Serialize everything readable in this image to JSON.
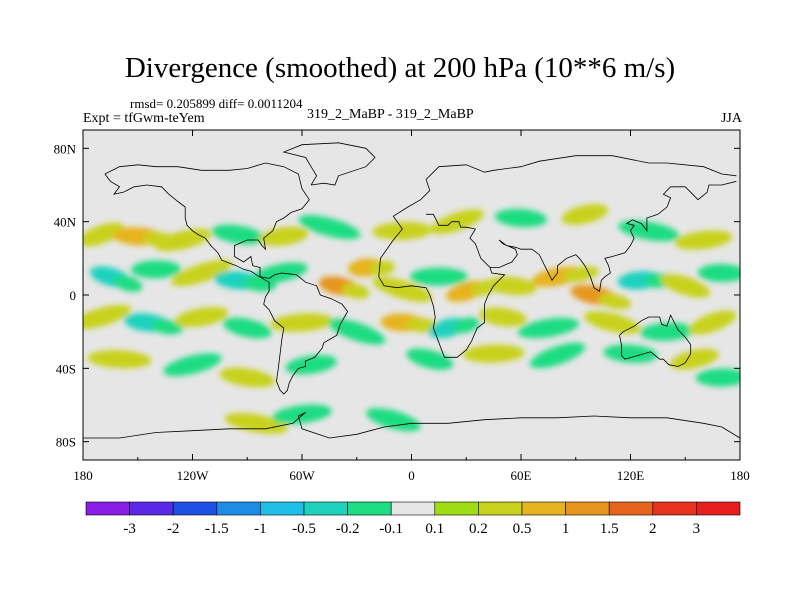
{
  "chart_data": {
    "type": "heatmap",
    "title": "Divergence (smoothed) at 200 hPa (10**6 m/s)",
    "stats_label": "rmsd= 0.205899 diff= 0.0011204",
    "left_label": "Expt = tfGwm-teYem",
    "center_label": "319_2_MaBP - 319_2_MaBP",
    "right_label": "JJA",
    "x_range": [
      -180,
      180
    ],
    "y_range": [
      -90,
      90
    ],
    "x_ticks": [
      {
        "value": -180,
        "label": "180"
      },
      {
        "value": -120,
        "label": "120W"
      },
      {
        "value": -60,
        "label": "60W"
      },
      {
        "value": 0,
        "label": "0"
      },
      {
        "value": 60,
        "label": "60E"
      },
      {
        "value": 120,
        "label": "120E"
      },
      {
        "value": 180,
        "label": "180"
      }
    ],
    "y_ticks": [
      {
        "value": 80,
        "label": "80N"
      },
      {
        "value": 40,
        "label": "40N"
      },
      {
        "value": 0,
        "label": "0"
      },
      {
        "value": -40,
        "label": "40S"
      },
      {
        "value": -80,
        "label": "80S"
      }
    ],
    "colorbar": {
      "colors": [
        "#8a1ee6",
        "#5a28e6",
        "#1e50e6",
        "#1e8ce6",
        "#1ebee6",
        "#1ed2be",
        "#1edc82",
        "#e6e6e6",
        "#a0dc14",
        "#c8d21e",
        "#e6b41e",
        "#e6961e",
        "#e6641e",
        "#e6321e",
        "#e61e1e"
      ],
      "labels": [
        "-3",
        "-2",
        "-1.5",
        "-1",
        "-0.5",
        "-0.2",
        "-0.1",
        "0.1",
        "0.2",
        "0.5",
        "1",
        "1.5",
        "2",
        "3"
      ]
    },
    "features": [
      {
        "lon": -170,
        "lat": 33,
        "level": 0.2
      },
      {
        "lon": -150,
        "lat": 32,
        "level": 0.5
      },
      {
        "lon": -125,
        "lat": 30,
        "level": 0.2
      },
      {
        "lon": -95,
        "lat": 33,
        "level": -0.2
      },
      {
        "lon": -70,
        "lat": 32,
        "level": 0.2
      },
      {
        "lon": -45,
        "lat": 37,
        "level": -0.2
      },
      {
        "lon": -5,
        "lat": 35,
        "level": 0.2
      },
      {
        "lon": 25,
        "lat": 40,
        "level": 0.2
      },
      {
        "lon": 60,
        "lat": 42,
        "level": -0.2
      },
      {
        "lon": 95,
        "lat": 44,
        "level": 0.2
      },
      {
        "lon": 130,
        "lat": 35,
        "level": -0.2
      },
      {
        "lon": 160,
        "lat": 30,
        "level": 0.2
      },
      {
        "lon": -165,
        "lat": 10,
        "level": -0.5
      },
      {
        "lon": -140,
        "lat": 14,
        "level": -0.2
      },
      {
        "lon": -115,
        "lat": 12,
        "level": 0.2
      },
      {
        "lon": -95,
        "lat": 8,
        "level": -0.5
      },
      {
        "lon": -72,
        "lat": 12,
        "level": -0.2
      },
      {
        "lon": -40,
        "lat": 5,
        "level": 1
      },
      {
        "lon": -25,
        "lat": 15,
        "level": 0.5
      },
      {
        "lon": -5,
        "lat": 3,
        "level": 0.2
      },
      {
        "lon": 15,
        "lat": 10,
        "level": -0.2
      },
      {
        "lon": 30,
        "lat": 2,
        "level": 0.5
      },
      {
        "lon": 55,
        "lat": 5,
        "level": 0.2
      },
      {
        "lon": 80,
        "lat": 10,
        "level": 0.5
      },
      {
        "lon": 100,
        "lat": 0,
        "level": 1
      },
      {
        "lon": 125,
        "lat": 8,
        "level": -0.5
      },
      {
        "lon": 150,
        "lat": 5,
        "level": 0.2
      },
      {
        "lon": 170,
        "lat": 12,
        "level": -0.2
      },
      {
        "lon": -170,
        "lat": -12,
        "level": 0.2
      },
      {
        "lon": -145,
        "lat": -15,
        "level": -0.5
      },
      {
        "lon": -115,
        "lat": -12,
        "level": 0.2
      },
      {
        "lon": -90,
        "lat": -18,
        "level": -0.2
      },
      {
        "lon": -60,
        "lat": -15,
        "level": 0.2
      },
      {
        "lon": -30,
        "lat": -20,
        "level": -0.2
      },
      {
        "lon": -5,
        "lat": -15,
        "level": 0.5
      },
      {
        "lon": 20,
        "lat": -18,
        "level": -0.5
      },
      {
        "lon": 50,
        "lat": -12,
        "level": 0.2
      },
      {
        "lon": 75,
        "lat": -18,
        "level": -0.2
      },
      {
        "lon": 110,
        "lat": -15,
        "level": 0.2
      },
      {
        "lon": 140,
        "lat": -20,
        "level": -0.2
      },
      {
        "lon": 165,
        "lat": -15,
        "level": 0.2
      },
      {
        "lon": -160,
        "lat": -35,
        "level": 0.2
      },
      {
        "lon": -120,
        "lat": -38,
        "level": -0.2
      },
      {
        "lon": -90,
        "lat": -45,
        "level": 0.2
      },
      {
        "lon": -55,
        "lat": -38,
        "level": -0.2
      },
      {
        "lon": 10,
        "lat": -35,
        "level": -0.2
      },
      {
        "lon": 45,
        "lat": -32,
        "level": 0.2
      },
      {
        "lon": 80,
        "lat": -33,
        "level": -0.2
      },
      {
        "lon": 120,
        "lat": -32,
        "level": -0.2
      },
      {
        "lon": 155,
        "lat": -35,
        "level": 0.2
      },
      {
        "lon": -85,
        "lat": -70,
        "level": 0.2
      },
      {
        "lon": -60,
        "lat": -65,
        "level": -0.2
      },
      {
        "lon": -10,
        "lat": -68,
        "level": -0.2
      },
      {
        "lon": 170,
        "lat": -45,
        "level": -0.2
      }
    ]
  }
}
